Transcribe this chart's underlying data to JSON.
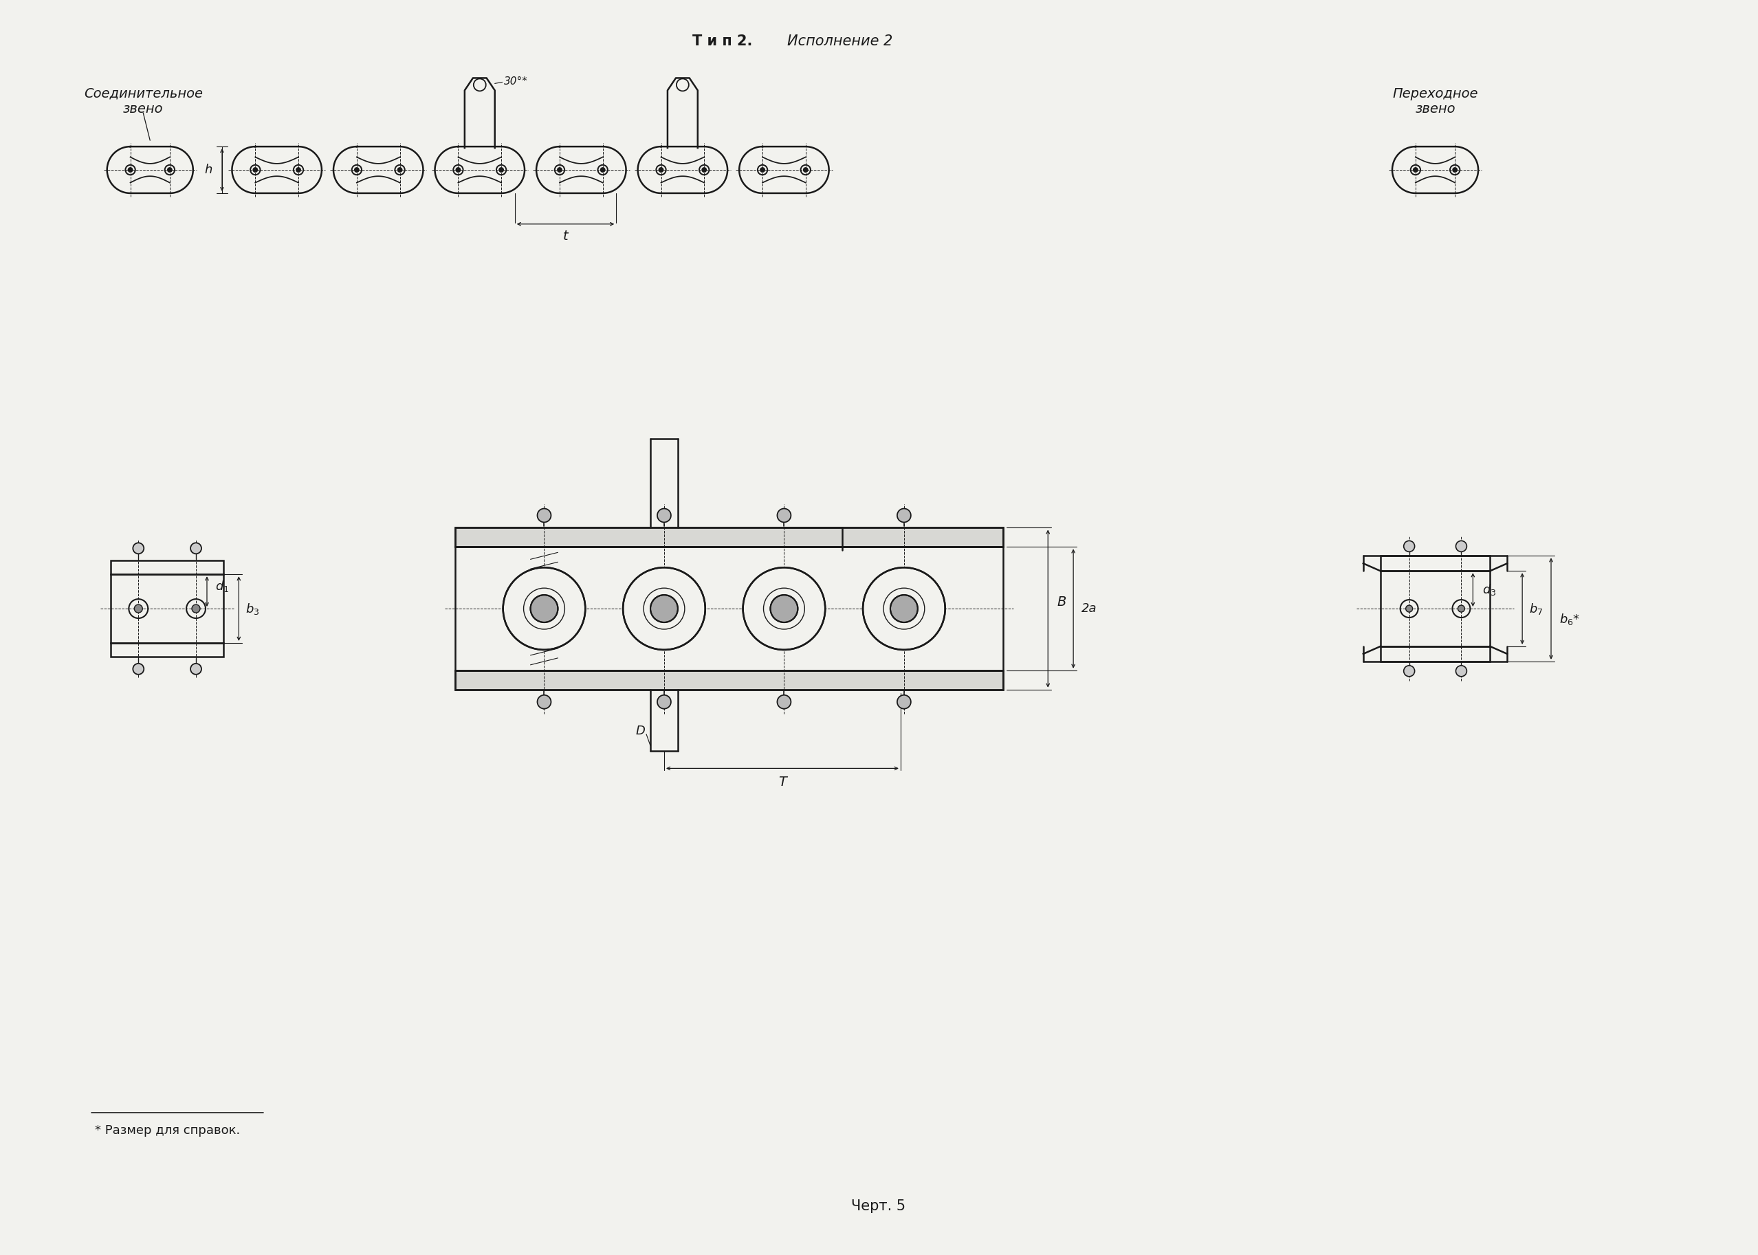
{
  "title_bold": "Т и п 2.",
  "title_italic": " Исполнение 2",
  "label_soed": "Соединительное\nзвено",
  "label_perekhod": "Переходное\nзвено",
  "footnote": "* Размер для справок.",
  "chert": "Черт. 5",
  "bg_color": "#f2f2ee",
  "line_color": "#1a1a1a"
}
